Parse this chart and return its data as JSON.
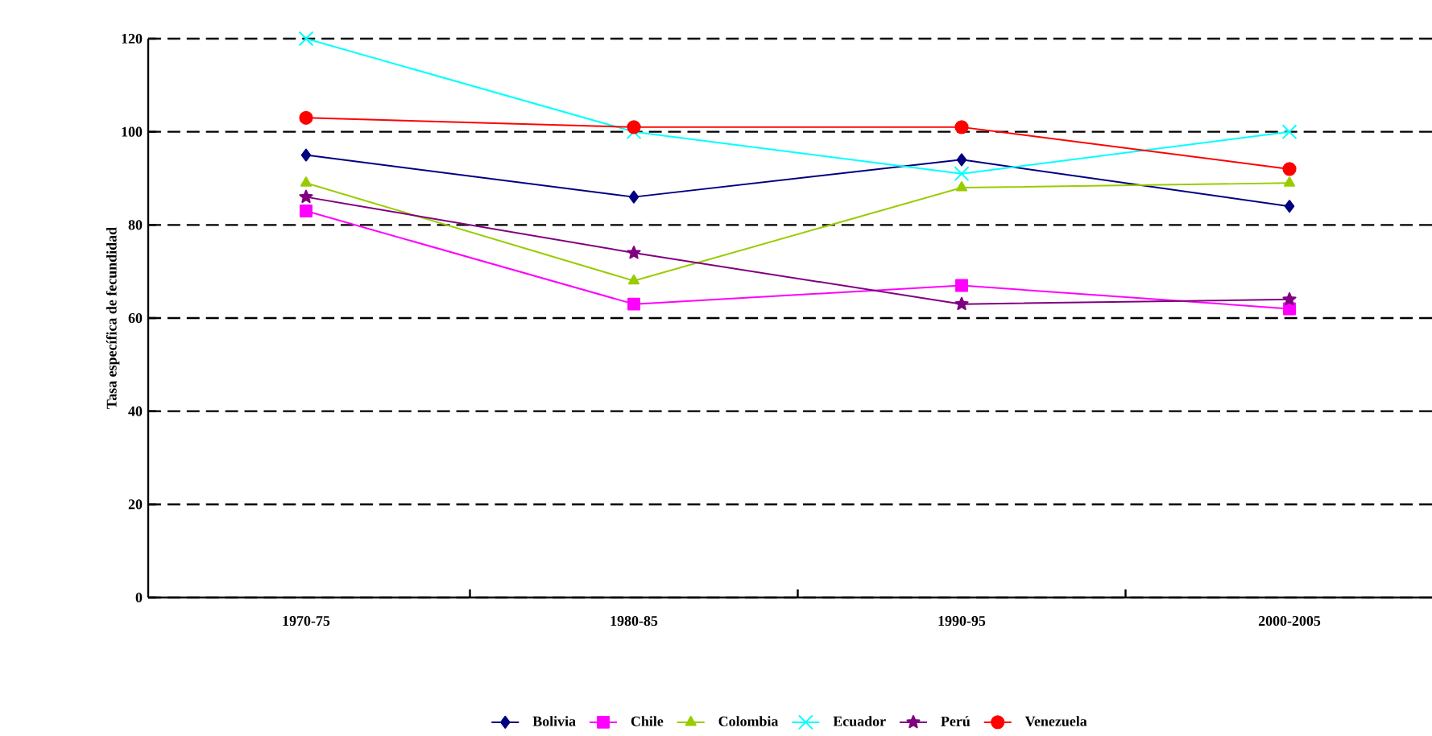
{
  "chart_data": {
    "type": "line",
    "ylabel": "Tasa específica de fecundidad",
    "categories": [
      "1970-75",
      "1980-85",
      "1990-95",
      "2000-2005"
    ],
    "series": [
      {
        "name": "Bolivia",
        "color": "#000080",
        "marker": "diamond",
        "values": [
          95,
          86,
          94,
          84
        ]
      },
      {
        "name": "Chile",
        "color": "#ff00ff",
        "marker": "square",
        "values": [
          83,
          63,
          67,
          62
        ]
      },
      {
        "name": "Colombia",
        "color": "#99cc00",
        "marker": "triangle",
        "values": [
          89,
          68,
          88,
          89
        ]
      },
      {
        "name": "Ecuador",
        "color": "#00ffff",
        "marker": "cross",
        "values": [
          120,
          100,
          91,
          100
        ]
      },
      {
        "name": "Perú",
        "color": "#800080",
        "marker": "star",
        "values": [
          86,
          74,
          63,
          64
        ]
      },
      {
        "name": "Venezuela",
        "color": "#ff0000",
        "marker": "circle",
        "values": [
          103,
          101,
          101,
          92
        ]
      }
    ],
    "ylim": [
      0,
      120
    ],
    "yticks": [
      0,
      20,
      40,
      60,
      80,
      100,
      120
    ],
    "grid": "y",
    "legend": "bottom"
  }
}
